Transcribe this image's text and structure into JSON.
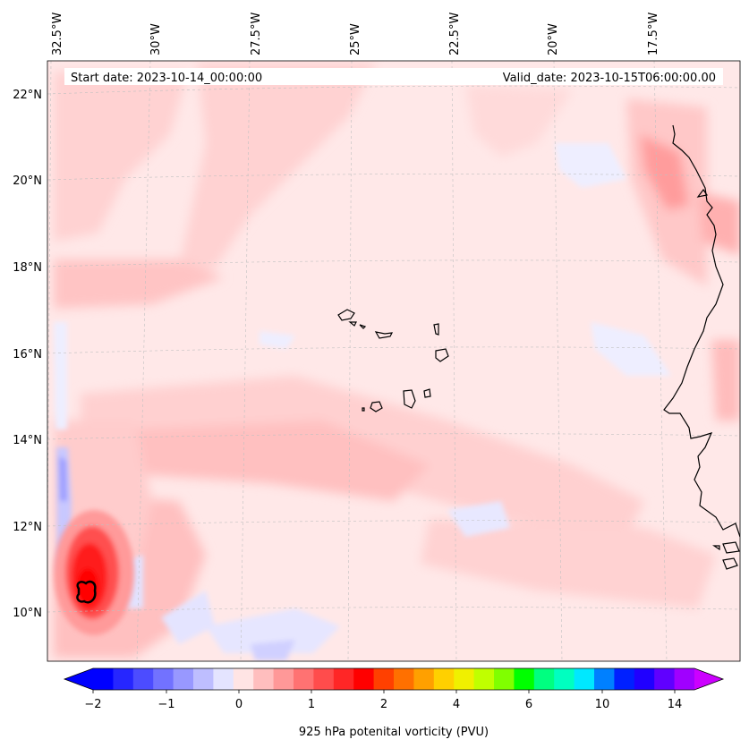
{
  "map": {
    "lon_labels": [
      "32.5°W",
      "30°W",
      "27.5°W",
      "25°W",
      "22.5°W",
      "20°W",
      "17.5°W"
    ],
    "lat_labels": [
      "22°N",
      "20°N",
      "18°N",
      "16°N",
      "14°N",
      "12°N",
      "10°N"
    ],
    "start_date": "Start date: 2023-10-14_00:00:00",
    "valid_date": "Valid_date: 2023-10-15T06:00:00.00"
  },
  "colorbar": {
    "label": "925 hPa potenital vorticity (PVU)",
    "tick_labels": [
      "−2",
      "−1",
      "0",
      "1",
      "2",
      "4",
      "6",
      "10",
      "14"
    ],
    "colors": [
      "#0000ff",
      "#2626ff",
      "#4c4cff",
      "#7272ff",
      "#9898ff",
      "#bebeff",
      "#e4e4ff",
      "#ffe4e4",
      "#ffbebe",
      "#ff9898",
      "#ff7272",
      "#ff4c4c",
      "#ff2626",
      "#ff0000",
      "#ff4000",
      "#ff7000",
      "#ffa000",
      "#ffd000",
      "#f0f000",
      "#c0ff00",
      "#80ff00",
      "#00ff00",
      "#00ff80",
      "#00ffc0",
      "#00e8ff",
      "#0080ff",
      "#0020ff",
      "#2000ff",
      "#6000ff",
      "#a000ff"
    ],
    "extend_min_color": "#0000ff",
    "extend_max_color": "#cc00ff"
  }
}
